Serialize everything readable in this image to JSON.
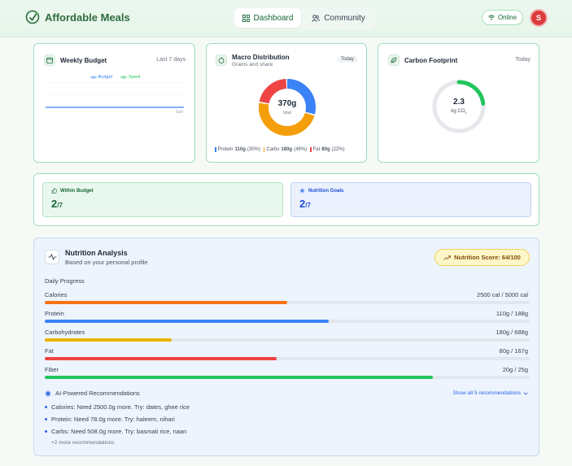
{
  "app": {
    "name": "Affordable Meals"
  },
  "nav": {
    "tabs": [
      {
        "label": "Dashboard"
      },
      {
        "label": "Community"
      }
    ]
  },
  "status": {
    "online_label": "Online"
  },
  "user": {
    "avatar_initial": "S"
  },
  "budget": {
    "title": "Weekly Budget",
    "range": "Last 7 days",
    "legend": [
      {
        "label": "Budget",
        "color": "#3b82f6"
      },
      {
        "label": "Spent",
        "color": "#22c55e"
      }
    ],
    "x_tick": "Sun"
  },
  "macro": {
    "title": "Macro Distribution",
    "subtitle": "Grams and share",
    "badge": "Today",
    "total_value": "370g",
    "total_label": "total",
    "items": [
      {
        "name": "Protein",
        "grams": "110g",
        "pct": "(30%)",
        "share": 30,
        "color": "#3b82f6"
      },
      {
        "name": "Carbs",
        "grams": "180g",
        "pct": "(49%)",
        "share": 49,
        "color": "#f59e0b"
      },
      {
        "name": "Fat",
        "grams": "80g",
        "pct": "(22%)",
        "share": 22,
        "color": "#ef4444"
      }
    ]
  },
  "carbon": {
    "title": "Carbon Footprint",
    "badge": "Today",
    "value": "2.3",
    "unit": "kg CO",
    "unit_sub": "2",
    "fraction": 0.23,
    "color": "#22c55e"
  },
  "goals": [
    {
      "label": "Within Budget",
      "value": "2",
      "total": "/7",
      "color": "#166534",
      "bg": "#e9f8ee",
      "border": "#b6e6c4"
    },
    {
      "label": "Nutrition Goals",
      "value": "2",
      "total": "/7",
      "color": "#1d4ed8",
      "bg": "#eaf1fd",
      "border": "#bfd3f5"
    }
  ],
  "nutrition": {
    "title": "Nutrition Analysis",
    "subtitle": "Based on your personal profile",
    "score_label": "Nutrition Score: 64/100",
    "section_label": "Daily Progress",
    "bars": [
      {
        "name": "Calories",
        "value": "2500 cal / 5000 cal",
        "fraction": 0.5,
        "color": "#f97316"
      },
      {
        "name": "Protein",
        "value": "110g / 188g",
        "fraction": 0.585,
        "color": "#3b82f6"
      },
      {
        "name": "Carbohydrates",
        "value": "180g / 688g",
        "fraction": 0.262,
        "color": "#eab308"
      },
      {
        "name": "Fat",
        "value": "80g / 167g",
        "fraction": 0.479,
        "color": "#ef4444"
      },
      {
        "name": "Fiber",
        "value": "20g / 25g",
        "fraction": 0.8,
        "color": "#22c55e"
      }
    ],
    "ai_label": "AI-Powered Recommendations",
    "show_all_label": "Show all 5 recommendations",
    "recommendations": [
      "Calories: Need 2500.0g more. Try: dates, ghee rice",
      "Protein: Need 78.0g more. Try: haleem, nihari",
      "Carbs: Need 508.0g more. Try: basmati rice, naan"
    ],
    "more_label": "+2 more recommendations"
  }
}
